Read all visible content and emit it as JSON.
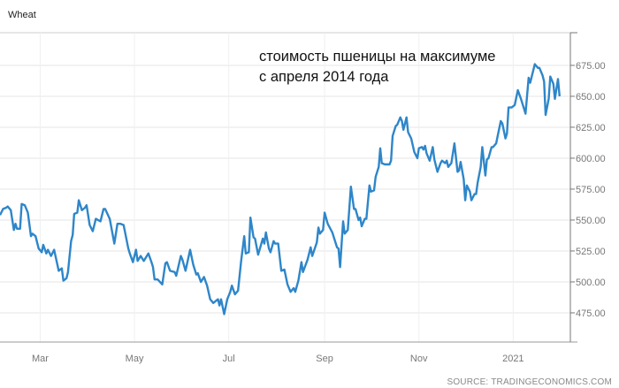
{
  "chart_data": {
    "type": "line",
    "title": "Wheat",
    "annotation": [
      "стоимость пшеницы на максимуме",
      "с апреля 2014 года"
    ],
    "source": "SOURCE: TRADINGECONOMICS.COM",
    "xlabel": "",
    "ylabel": "",
    "xlim": [
      "2020-02-04",
      "2021-02-07"
    ],
    "ylim": [
      451.4,
      701.4
    ],
    "grid": true,
    "y_axis_side": "right",
    "line_color": "#2e86c9",
    "x_ticks": [
      {
        "date": "2020-03-01",
        "label": "Mar"
      },
      {
        "date": "2020-05-01",
        "label": "May"
      },
      {
        "date": "2020-07-01",
        "label": "Jul"
      },
      {
        "date": "2020-09-01",
        "label": "Sep"
      },
      {
        "date": "2020-11-01",
        "label": "Nov"
      },
      {
        "date": "2021-01-01",
        "label": "2021"
      }
    ],
    "y_ticks": [
      {
        "value": 475,
        "label": "475.00"
      },
      {
        "value": 500,
        "label": "500.00"
      },
      {
        "value": 525,
        "label": "525.00"
      },
      {
        "value": 550,
        "label": "550.00"
      },
      {
        "value": 575,
        "label": "575.00"
      },
      {
        "value": 600,
        "label": "600.00"
      },
      {
        "value": 625,
        "label": "625.00"
      },
      {
        "value": 650,
        "label": "650.00"
      },
      {
        "value": 675,
        "label": "675.00"
      }
    ],
    "series": [
      {
        "x": [
          "2020-02-04",
          "2020-02-06",
          "2020-02-08",
          "2020-02-09",
          "2020-02-11",
          "2020-02-13",
          "2020-02-14",
          "2020-02-15",
          "2020-02-17",
          "2020-02-18",
          "2020-02-20",
          "2020-02-22",
          "2020-02-24",
          "2020-02-25",
          "2020-02-27",
          "2020-02-29",
          "2020-03-02",
          "2020-03-03",
          "2020-03-05",
          "2020-03-06",
          "2020-03-08",
          "2020-03-10",
          "2020-03-13",
          "2020-03-15",
          "2020-03-16",
          "2020-03-18",
          "2020-03-19",
          "2020-03-21",
          "2020-03-22",
          "2020-03-23",
          "2020-03-25",
          "2020-03-26",
          "2020-03-28",
          "2020-03-30",
          "2020-03-31",
          "2020-04-02",
          "2020-04-04",
          "2020-04-06",
          "2020-04-09",
          "2020-04-11",
          "2020-04-12",
          "2020-04-15",
          "2020-04-18",
          "2020-04-20",
          "2020-04-22",
          "2020-04-24",
          "2020-04-27",
          "2020-04-28",
          "2020-04-30",
          "2020-05-02",
          "2020-05-03",
          "2020-05-05",
          "2020-05-07",
          "2020-05-10",
          "2020-05-12",
          "2020-05-13",
          "2020-05-14",
          "2020-05-16",
          "2020-05-19",
          "2020-05-21",
          "2020-05-22",
          "2020-05-24",
          "2020-05-27",
          "2020-05-28",
          "2020-05-31",
          "2020-06-01",
          "2020-06-03",
          "2020-06-06",
          "2020-06-08",
          "2020-06-10",
          "2020-06-11",
          "2020-06-13",
          "2020-06-15",
          "2020-06-17",
          "2020-06-19",
          "2020-06-21",
          "2020-06-24",
          "2020-06-25",
          "2020-06-26",
          "2020-06-28",
          "2020-06-30",
          "2020-07-02",
          "2020-07-03",
          "2020-07-05",
          "2020-07-07",
          "2020-07-09",
          "2020-07-11",
          "2020-07-12",
          "2020-07-14",
          "2020-07-15",
          "2020-07-17",
          "2020-07-18",
          "2020-07-20",
          "2020-07-23",
          "2020-07-24",
          "2020-07-25",
          "2020-07-27",
          "2020-07-28",
          "2020-07-30",
          "2020-07-31",
          "2020-08-02",
          "2020-08-04",
          "2020-08-06",
          "2020-08-08",
          "2020-08-10",
          "2020-08-12",
          "2020-08-13",
          "2020-08-15",
          "2020-08-17",
          "2020-08-18",
          "2020-08-21",
          "2020-08-23",
          "2020-08-24",
          "2020-08-27",
          "2020-08-28",
          "2020-08-29",
          "2020-08-31",
          "2020-09-01",
          "2020-09-03",
          "2020-09-06",
          "2020-09-09",
          "2020-09-10",
          "2020-09-11",
          "2020-09-13",
          "2020-09-14",
          "2020-09-16",
          "2020-09-18",
          "2020-09-20",
          "2020-09-21",
          "2020-09-23",
          "2020-09-24",
          "2020-09-25",
          "2020-09-27",
          "2020-09-28",
          "2020-09-30",
          "2020-10-01",
          "2020-10-03",
          "2020-10-04",
          "2020-10-06",
          "2020-10-07",
          "2020-10-08",
          "2020-10-10",
          "2020-10-13",
          "2020-10-14",
          "2020-10-15",
          "2020-10-17",
          "2020-10-18",
          "2020-10-20",
          "2020-10-21",
          "2020-10-22",
          "2020-10-24",
          "2020-10-25",
          "2020-10-27",
          "2020-10-29",
          "2020-10-31",
          "2020-11-01",
          "2020-11-03",
          "2020-11-04",
          "2020-11-05",
          "2020-11-06",
          "2020-11-08",
          "2020-11-10",
          "2020-11-11",
          "2020-11-13",
          "2020-11-15",
          "2020-11-16",
          "2020-11-18",
          "2020-11-19",
          "2020-11-20",
          "2020-11-22",
          "2020-11-24",
          "2020-11-26",
          "2020-11-27",
          "2020-11-28",
          "2020-11-30",
          "2020-12-01",
          "2020-12-02",
          "2020-12-04",
          "2020-12-05",
          "2020-12-07",
          "2020-12-08",
          "2020-12-09",
          "2020-12-11",
          "2020-12-12",
          "2020-12-14",
          "2020-12-15",
          "2020-12-16",
          "2020-12-18",
          "2020-12-19",
          "2020-12-21",
          "2020-12-22",
          "2020-12-24",
          "2020-12-25",
          "2020-12-27",
          "2020-12-28",
          "2020-12-29",
          "2020-12-31",
          "2021-01-02",
          "2021-01-04",
          "2021-01-06",
          "2021-01-08",
          "2021-01-09",
          "2021-01-11",
          "2021-01-12",
          "2021-01-15",
          "2021-01-17",
          "2021-01-18",
          "2021-01-20",
          "2021-01-21",
          "2021-01-22",
          "2021-01-24",
          "2021-01-25",
          "2021-01-27",
          "2021-01-28",
          "2021-01-30",
          "2021-01-31"
        ],
        "y": [
          554,
          559,
          560,
          561,
          558,
          542,
          547,
          543,
          543,
          563,
          562,
          556,
          537,
          539,
          537,
          527,
          524,
          530,
          523,
          526,
          521,
          526,
          509,
          511,
          501,
          503,
          508,
          533,
          538,
          555,
          556,
          566,
          558,
          560,
          562,
          546,
          541,
          551,
          549,
          559,
          559,
          551,
          531,
          547,
          547,
          546,
          527,
          523,
          516,
          526,
          517,
          521,
          517,
          523,
          516,
          512,
          502,
          502,
          498,
          515,
          516,
          509,
          508,
          505,
          521,
          518,
          509,
          526,
          514,
          506,
          507,
          500,
          504,
          497,
          486,
          483,
          486,
          481,
          486,
          474,
          486,
          492,
          497,
          490,
          493,
          517,
          537,
          523,
          524,
          552,
          536,
          535,
          522,
          535,
          531,
          540,
          527,
          524,
          533,
          531,
          531,
          509,
          510,
          498,
          492,
          495,
          492,
          501,
          516,
          508,
          518,
          528,
          521,
          532,
          544,
          539,
          542,
          556,
          547,
          540,
          528,
          527,
          512,
          549,
          539,
          542,
          577,
          559,
          559,
          550,
          552,
          545,
          551,
          551,
          578,
          573,
          574,
          585,
          593,
          608,
          596,
          595,
          595,
          598,
          618,
          626,
          627,
          633,
          630,
          623,
          633,
          621,
          616,
          605,
          600,
          608,
          609,
          607,
          610,
          604,
          598,
          609,
          599,
          589,
          596,
          598,
          596,
          598,
          593,
          596,
          612,
          589,
          590,
          597,
          583,
          566,
          578,
          573,
          566,
          571,
          571,
          580,
          593,
          609,
          586,
          599,
          600,
          609,
          609,
          612,
          618,
          630,
          628,
          616,
          620,
          641,
          641,
          643,
          655,
          648,
          640,
          636,
          665,
          661,
          676,
          673,
          673,
          667,
          662,
          635,
          648,
          666,
          660,
          648,
          664,
          650
        ]
      }
    ]
  }
}
